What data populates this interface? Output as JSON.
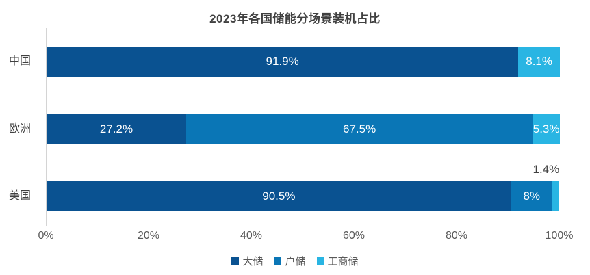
{
  "chart_data": {
    "type": "bar",
    "orientation": "horizontal",
    "stacked": true,
    "title": "2023年各国储能分场景装机占比",
    "categories": [
      "中国",
      "欧洲",
      "美国"
    ],
    "series": [
      {
        "name": "大储",
        "color": "#0A5291",
        "values": [
          91.9,
          27.2,
          90.5
        ],
        "labels": [
          "91.9%",
          "27.2%",
          "90.5%"
        ]
      },
      {
        "name": "户储",
        "color": "#0A76B6",
        "values": [
          0,
          67.5,
          8
        ],
        "labels": [
          "",
          "67.5%",
          "8%"
        ]
      },
      {
        "name": "工商储",
        "color": "#29B5E3",
        "values": [
          8.1,
          5.3,
          1.4
        ],
        "labels": [
          "8.1%",
          "5.3%",
          "1.4%"
        ]
      }
    ],
    "x_axis": {
      "range": [
        0,
        100
      ],
      "tick_values": [
        0,
        20,
        40,
        60,
        80,
        100
      ],
      "ticks": [
        "0%",
        "20%",
        "40%",
        "60%",
        "80%",
        "100%"
      ]
    },
    "legend": {
      "position": "bottom",
      "entries": [
        "大储",
        "户储",
        "工商储"
      ]
    },
    "label_colors": {
      "inside": "#FFFFFF",
      "outside": "#404040"
    },
    "outside_label_threshold": 2,
    "grid": false
  }
}
